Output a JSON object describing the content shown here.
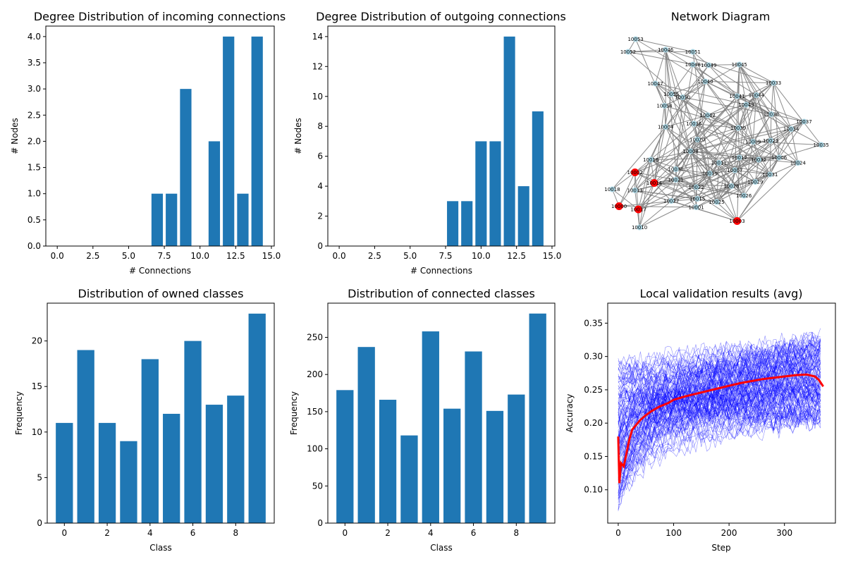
{
  "chart_data": [
    {
      "type": "bar",
      "title": "Degree Distribution of incoming connections",
      "xlabel": "# Connections",
      "ylabel": "# Nodes",
      "x": [
        7,
        8,
        9,
        11,
        12,
        13,
        14
      ],
      "values": [
        1,
        1,
        3,
        2,
        4,
        1,
        4
      ],
      "xlim": [
        -0.8,
        15.2
      ],
      "ylim": [
        0,
        4.2
      ],
      "xticks": [
        0.0,
        2.5,
        5.0,
        7.5,
        10.0,
        12.5,
        15.0
      ],
      "xtick_labels": [
        "0.0",
        "2.5",
        "5.0",
        "7.5",
        "10.0",
        "12.5",
        "15.0"
      ],
      "yticks": [
        0.0,
        0.5,
        1.0,
        1.5,
        2.0,
        2.5,
        3.0,
        3.5,
        4.0
      ],
      "ytick_labels": [
        "0.0",
        "0.5",
        "1.0",
        "1.5",
        "2.0",
        "2.5",
        "3.0",
        "3.5",
        "4.0"
      ],
      "color": "#1f77b4"
    },
    {
      "type": "bar",
      "title": "Degree Distribution of outgoing connections",
      "xlabel": "# Connections",
      "ylabel": "# Nodes",
      "x": [
        8,
        9,
        10,
        11,
        12,
        13,
        14
      ],
      "values": [
        3,
        3,
        7,
        7,
        14,
        4,
        9
      ],
      "xlim": [
        -0.8,
        15.2
      ],
      "ylim": [
        0,
        14.7
      ],
      "xticks": [
        0.0,
        2.5,
        5.0,
        7.5,
        10.0,
        12.5,
        15.0
      ],
      "xtick_labels": [
        "0.0",
        "2.5",
        "5.0",
        "7.5",
        "10.0",
        "12.5",
        "15.0"
      ],
      "yticks": [
        0,
        2,
        4,
        6,
        8,
        10,
        12,
        14
      ],
      "ytick_labels": [
        "0",
        "2",
        "4",
        "6",
        "8",
        "10",
        "12",
        "14"
      ],
      "color": "#1f77b4"
    },
    {
      "type": "network",
      "title": "Network Diagram",
      "node_color": "#add8e6",
      "highlight_color": "#ff0000",
      "edge_color": "#808080",
      "nodes": [
        {
          "id": "10053",
          "x": 0.123,
          "y": 0.955
        },
        {
          "id": "10052",
          "x": 0.09,
          "y": 0.895
        },
        {
          "id": "10046",
          "x": 0.255,
          "y": 0.905
        },
        {
          "id": "10051",
          "x": 0.375,
          "y": 0.895
        },
        {
          "id": "10048",
          "x": 0.375,
          "y": 0.835
        },
        {
          "id": "10049",
          "x": 0.445,
          "y": 0.832
        },
        {
          "id": "10045",
          "x": 0.58,
          "y": 0.835
        },
        {
          "id": "10040",
          "x": 0.43,
          "y": 0.755
        },
        {
          "id": "10047",
          "x": 0.21,
          "y": 0.745
        },
        {
          "id": "10033",
          "x": 0.73,
          "y": 0.748
        },
        {
          "id": "10055",
          "x": 0.28,
          "y": 0.695
        },
        {
          "id": "10050",
          "x": 0.33,
          "y": 0.68
        },
        {
          "id": "10041",
          "x": 0.57,
          "y": 0.685
        },
        {
          "id": "10044",
          "x": 0.655,
          "y": 0.69
        },
        {
          "id": "10054",
          "x": 0.25,
          "y": 0.64
        },
        {
          "id": "10043",
          "x": 0.61,
          "y": 0.645
        },
        {
          "id": "10042",
          "x": 0.44,
          "y": 0.595
        },
        {
          "id": "10038",
          "x": 0.72,
          "y": 0.6
        },
        {
          "id": "10037",
          "x": 0.865,
          "y": 0.565
        },
        {
          "id": "10036",
          "x": 0.38,
          "y": 0.555
        },
        {
          "id": "10004",
          "x": 0.255,
          "y": 0.54
        },
        {
          "id": "10039",
          "x": 0.575,
          "y": 0.535
        },
        {
          "id": "10034",
          "x": 0.808,
          "y": 0.53
        },
        {
          "id": "10020",
          "x": 0.395,
          "y": 0.48
        },
        {
          "id": "10009",
          "x": 0.64,
          "y": 0.47
        },
        {
          "id": "10023",
          "x": 0.718,
          "y": 0.475
        },
        {
          "id": "10035",
          "x": 0.94,
          "y": 0.455
        },
        {
          "id": "10008",
          "x": 0.365,
          "y": 0.425
        },
        {
          "id": "10016",
          "x": 0.19,
          "y": 0.385
        },
        {
          "id": "10012",
          "x": 0.58,
          "y": 0.395
        },
        {
          "id": "10032",
          "x": 0.665,
          "y": 0.385
        },
        {
          "id": "10006",
          "x": 0.755,
          "y": 0.395
        },
        {
          "id": "10011",
          "x": 0.49,
          "y": 0.37
        },
        {
          "id": "10024",
          "x": 0.838,
          "y": 0.37
        },
        {
          "id": "10030",
          "x": 0.3,
          "y": 0.34
        },
        {
          "id": "10007",
          "x": 0.56,
          "y": 0.335
        },
        {
          "id": "10002",
          "x": 0.12,
          "y": 0.325
        },
        {
          "id": "10019",
          "x": 0.45,
          "y": 0.32
        },
        {
          "id": "10031",
          "x": 0.715,
          "y": 0.315
        },
        {
          "id": "10021",
          "x": 0.3,
          "y": 0.29
        },
        {
          "id": "10014",
          "x": 0.205,
          "y": 0.275
        },
        {
          "id": "10029",
          "x": 0.65,
          "y": 0.28
        },
        {
          "id": "10022",
          "x": 0.39,
          "y": 0.255
        },
        {
          "id": "10028",
          "x": 0.545,
          "y": 0.26
        },
        {
          "id": "10013",
          "x": 0.12,
          "y": 0.24
        },
        {
          "id": "10018",
          "x": 0.02,
          "y": 0.245
        },
        {
          "id": "10026",
          "x": 0.6,
          "y": 0.215
        },
        {
          "id": "10015",
          "x": 0.395,
          "y": 0.2
        },
        {
          "id": "10027",
          "x": 0.28,
          "y": 0.19
        },
        {
          "id": "10025",
          "x": 0.48,
          "y": 0.185
        },
        {
          "id": "10001",
          "x": 0.39,
          "y": 0.16
        },
        {
          "id": "10000",
          "x": 0.05,
          "y": 0.165
        },
        {
          "id": "10017",
          "x": 0.135,
          "y": 0.15
        },
        {
          "id": "10003",
          "x": 0.57,
          "y": 0.095
        },
        {
          "id": "10010",
          "x": 0.14,
          "y": 0.065
        }
      ],
      "highlighted": [
        "10002",
        "10014",
        "10000",
        "10017",
        "10003"
      ]
    },
    {
      "type": "bar",
      "title": "Distribution of owned classes",
      "xlabel": "Class",
      "ylabel": "Frequency",
      "x": [
        0,
        1,
        2,
        3,
        4,
        5,
        6,
        7,
        8,
        9
      ],
      "values": [
        11,
        19,
        11,
        9,
        18,
        12,
        20,
        13,
        14,
        23
      ],
      "xlim": [
        -0.8,
        9.8
      ],
      "ylim": [
        0,
        24.15
      ],
      "xticks": [
        0,
        2,
        4,
        6,
        8
      ],
      "xtick_labels": [
        "0",
        "2",
        "4",
        "6",
        "8"
      ],
      "yticks": [
        0,
        5,
        10,
        15,
        20
      ],
      "ytick_labels": [
        "0",
        "5",
        "10",
        "15",
        "20"
      ],
      "color": "#1f77b4"
    },
    {
      "type": "bar",
      "title": "Distribution of connected classes",
      "xlabel": "Class",
      "ylabel": "Frequency",
      "x": [
        0,
        1,
        2,
        3,
        4,
        5,
        6,
        7,
        8,
        9
      ],
      "values": [
        179,
        237,
        166,
        118,
        258,
        154,
        231,
        151,
        173,
        282
      ],
      "xlim": [
        -0.8,
        9.8
      ],
      "ylim": [
        0,
        296
      ],
      "xticks": [
        0,
        2,
        4,
        6,
        8
      ],
      "xtick_labels": [
        "0",
        "2",
        "4",
        "6",
        "8"
      ],
      "yticks": [
        0,
        50,
        100,
        150,
        200,
        250
      ],
      "ytick_labels": [
        "0",
        "50",
        "100",
        "150",
        "200",
        "250"
      ],
      "color": "#1f77b4"
    },
    {
      "type": "line",
      "title": "Local validation results (avg)",
      "xlabel": "Step",
      "ylabel": "Accuracy",
      "xlim": [
        -19,
        392
      ],
      "ylim": [
        0.05,
        0.38
      ],
      "xticks": [
        0,
        100,
        200,
        300
      ],
      "xtick_labels": [
        "0",
        "100",
        "200",
        "300"
      ],
      "yticks": [
        0.1,
        0.15,
        0.2,
        0.25,
        0.3,
        0.35
      ],
      "ytick_labels": [
        "0.10",
        "0.15",
        "0.20",
        "0.25",
        "0.30",
        "0.35"
      ],
      "series": [
        {
          "role": "average",
          "color": "#ff0000",
          "x": [
            0,
            2,
            5,
            10,
            15,
            20,
            25,
            30,
            40,
            50,
            60,
            75,
            90,
            100,
            120,
            140,
            160,
            180,
            200,
            220,
            240,
            260,
            280,
            300,
            320,
            340,
            355,
            362,
            366,
            370
          ],
          "y": [
            0.18,
            0.11,
            0.14,
            0.135,
            0.155,
            0.175,
            0.19,
            0.195,
            0.205,
            0.212,
            0.218,
            0.225,
            0.23,
            0.235,
            0.24,
            0.244,
            0.248,
            0.252,
            0.256,
            0.26,
            0.263,
            0.266,
            0.268,
            0.27,
            0.272,
            0.273,
            0.27,
            0.265,
            0.26,
            0.255
          ]
        },
        {
          "role": "individual clients",
          "color": "#0000ff",
          "count": 120,
          "steps": 365,
          "range_start": [
            0.075,
            0.29
          ],
          "range_end": [
            0.2,
            0.33
          ]
        }
      ]
    }
  ]
}
